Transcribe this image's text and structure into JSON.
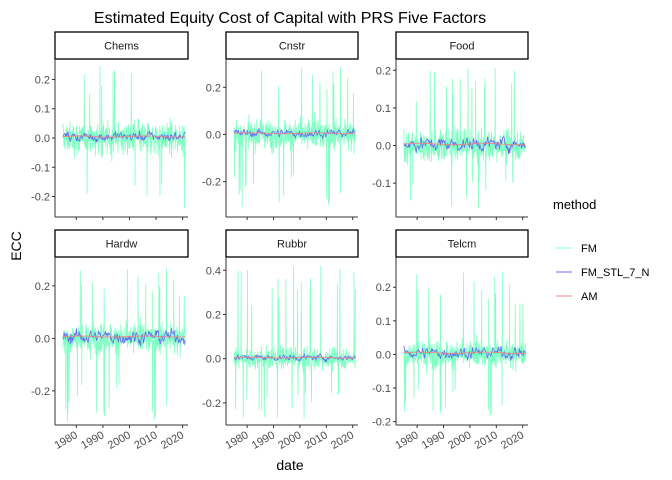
{
  "chart_data": {
    "type": "line",
    "title": "Estimated Equity Cost of Capital with PRS Five Factors",
    "xlabel": "date",
    "ylabel": "ECC",
    "x_ticks": [
      "1980",
      "1990",
      "2000",
      "2010",
      "2020"
    ],
    "x_range": [
      1972,
      2022
    ],
    "grid": false,
    "legend": {
      "title": "method",
      "placement": "right",
      "entries": [
        {
          "name": "FM",
          "color": "#7fffc4"
        },
        {
          "name": "FM_STL_7_N",
          "color": "#6a6af0"
        },
        {
          "name": "AM",
          "color": "#e88a86"
        }
      ]
    },
    "panels": [
      {
        "name": "Chems",
        "ylim": [
          -0.27,
          0.27
        ],
        "yticks": [
          "-0.2",
          "-0.1",
          "0.0",
          "0.1",
          "0.2"
        ],
        "ytick_values": [
          -0.2,
          -0.1,
          0,
          0.1,
          0.2
        ],
        "series": {
          "FM_min": -0.25,
          "FM_max": 0.25,
          "FM_sd": 0.07,
          "STL_amp": 0.02,
          "AM": 0.005
        }
      },
      {
        "name": "Cnstr",
        "ylim": [
          -0.35,
          0.32
        ],
        "yticks": [
          "-0.2",
          "0.0",
          "0.2"
        ],
        "ytick_values": [
          -0.2,
          0,
          0.2
        ],
        "series": {
          "FM_min": -0.31,
          "FM_max": 0.29,
          "FM_sd": 0.08,
          "STL_amp": 0.02,
          "AM": 0.005
        }
      },
      {
        "name": "Food",
        "ylim": [
          -0.19,
          0.23
        ],
        "yticks": [
          "-0.1",
          "0.0",
          "0.1",
          "0.2"
        ],
        "ytick_values": [
          -0.1,
          0,
          0.1,
          0.2
        ],
        "series": {
          "FM_min": -0.17,
          "FM_max": 0.21,
          "FM_sd": 0.05,
          "STL_amp": 0.02,
          "AM": 0.004
        }
      },
      {
        "name": "Hardw",
        "ylim": [
          -0.33,
          0.31
        ],
        "yticks": [
          "-0.2",
          "0.0",
          "0.2"
        ],
        "ytick_values": [
          -0.2,
          0,
          0.2
        ],
        "series": {
          "FM_min": -0.32,
          "FM_max": 0.27,
          "FM_sd": 0.07,
          "STL_amp": 0.03,
          "AM": 0.007
        }
      },
      {
        "name": "Rubbr",
        "ylim": [
          -0.3,
          0.46
        ],
        "yticks": [
          "-0.2",
          "0.0",
          "0.2",
          "0.4"
        ],
        "ytick_values": [
          -0.2,
          0,
          0.2,
          0.4
        ],
        "series": {
          "FM_min": -0.28,
          "FM_max": 0.43,
          "FM_sd": 0.06,
          "STL_amp": 0.015,
          "AM": 0.005
        }
      },
      {
        "name": "Telcm",
        "ylim": [
          -0.21,
          0.29
        ],
        "yticks": [
          "-0.2",
          "-0.1",
          "0.0",
          "0.1",
          "0.2"
        ],
        "ytick_values": [
          -0.2,
          -0.1,
          0,
          0.1,
          0.2
        ],
        "series": {
          "FM_min": -0.19,
          "FM_max": 0.25,
          "FM_sd": 0.05,
          "STL_amp": 0.02,
          "AM": 0.005
        }
      }
    ]
  }
}
